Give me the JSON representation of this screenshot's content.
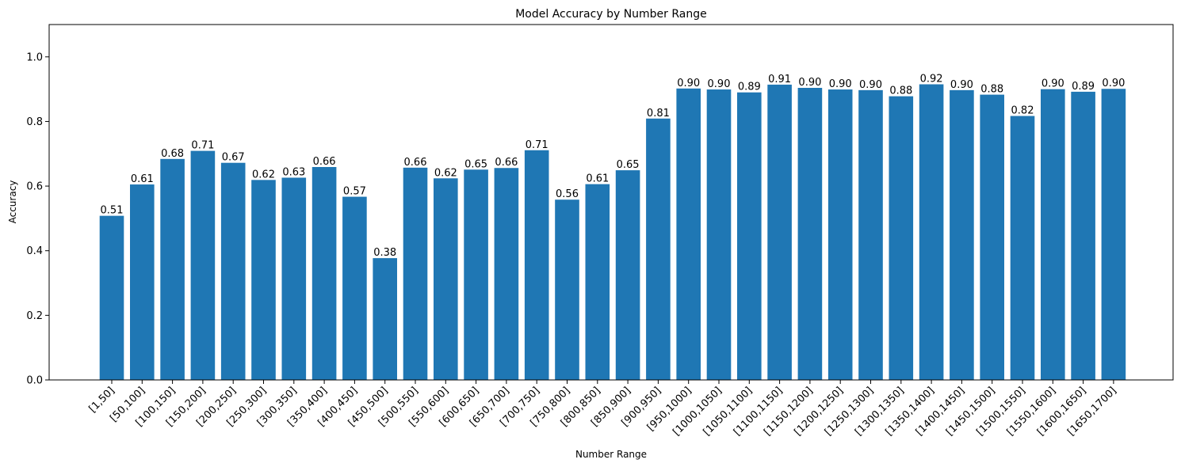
{
  "chart_data": {
    "type": "bar",
    "title": "Model Accuracy by Number Range",
    "xlabel": "Number Range",
    "ylabel": "Accuracy",
    "ylim": [
      0,
      1.1
    ],
    "yticks": [
      0.0,
      0.2,
      0.4,
      0.6,
      0.8,
      1.0
    ],
    "ytick_labels": [
      "0.0",
      "0.2",
      "0.4",
      "0.6",
      "0.8",
      "1.0"
    ],
    "bar_color": "#1f77b4",
    "grid": false,
    "categories": [
      "[1,50]",
      "[50,100]",
      "[100,150]",
      "[150,200]",
      "[200,250]",
      "[250,300]",
      "[300,350]",
      "[350,400]",
      "[400,450]",
      "[450,500]",
      "[500,550]",
      "[550,600]",
      "[600,650]",
      "[650,700]",
      "[700,750]",
      "[750,800]",
      "[800,850]",
      "[850,900]",
      "[900,950]",
      "[950,1000]",
      "[1000,1050]",
      "[1050,1100]",
      "[1100,1150]",
      "[1150,1200]",
      "[1200,1250]",
      "[1250,1300]",
      "[1300,1350]",
      "[1350,1400]",
      "[1400,1450]",
      "[1450,1500]",
      "[1500,1550]",
      "[1550,1600]",
      "[1600,1650]",
      "[1650,1700]"
    ],
    "values": [
      0.508,
      0.605,
      0.684,
      0.709,
      0.672,
      0.619,
      0.626,
      0.659,
      0.567,
      0.377,
      0.657,
      0.624,
      0.651,
      0.656,
      0.711,
      0.558,
      0.606,
      0.649,
      0.809,
      0.902,
      0.899,
      0.89,
      0.914,
      0.904,
      0.899,
      0.897,
      0.878,
      0.915,
      0.897,
      0.883,
      0.817,
      0.9,
      0.892,
      0.901
    ],
    "value_labels": [
      "0.51",
      "0.61",
      "0.68",
      "0.71",
      "0.67",
      "0.62",
      "0.63",
      "0.66",
      "0.57",
      "0.38",
      "0.66",
      "0.62",
      "0.65",
      "0.66",
      "0.71",
      "0.56",
      "0.61",
      "0.65",
      "0.81",
      "0.90",
      "0.90",
      "0.89",
      "0.91",
      "0.90",
      "0.90",
      "0.90",
      "0.88",
      "0.92",
      "0.90",
      "0.88",
      "0.82",
      "0.90",
      "0.89",
      "0.90"
    ]
  }
}
